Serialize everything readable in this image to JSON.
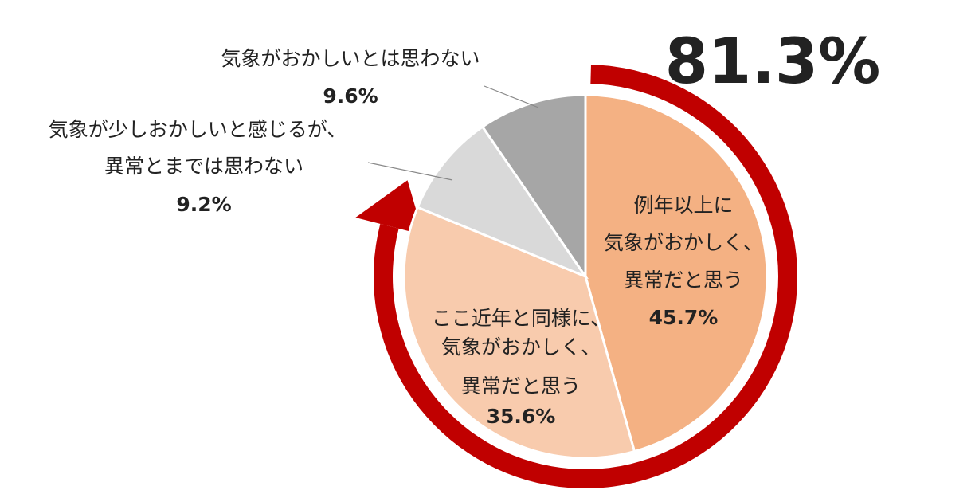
{
  "chart_data": {
    "type": "pie",
    "total_highlight": {
      "value": "81.3%",
      "color": "#C00000"
    },
    "slices": [
      {
        "label_lines": [
          "例年以上に",
          "気象がおかしく、",
          "異常だと思う"
        ],
        "value": 45.7,
        "value_label": "45.7%",
        "color": "#F4B183"
      },
      {
        "label_lines": [
          "ここ近年と同様に、",
          "気象がおかしく、",
          "異常だと思う"
        ],
        "value": 35.6,
        "value_label": "35.6%",
        "color": "#F8CBAD"
      },
      {
        "label_lines": [
          "気象が少しおかしいと感じるが、",
          "異常とまでは思わない"
        ],
        "value": 9.2,
        "value_label": "9.2%",
        "color": "#D9D9D9"
      },
      {
        "label_lines": [
          "気象がおかしいとは思わない"
        ],
        "value": 9.6,
        "value_label": "9.6%",
        "color": "#A6A6A6"
      }
    ]
  }
}
